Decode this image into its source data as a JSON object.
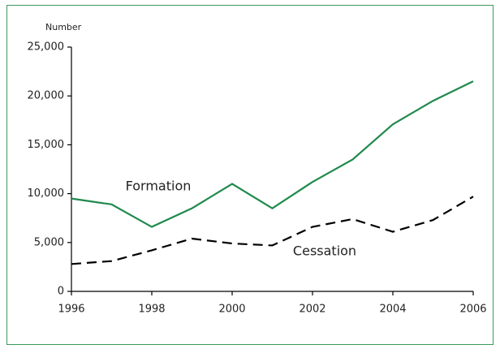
{
  "chart_data": {
    "type": "line",
    "y_label": "Number",
    "x": [
      1996,
      1997,
      1998,
      1999,
      2000,
      2001,
      2002,
      2003,
      2004,
      2005,
      2006
    ],
    "series": [
      {
        "name": "Formation",
        "color": "#1f8a4c",
        "dash": false,
        "values": [
          9500,
          8900,
          6600,
          8500,
          11000,
          8500,
          11200,
          13500,
          17100,
          19500,
          21500
        ]
      },
      {
        "name": "Cessation",
        "color": "#000000",
        "dash": true,
        "values": [
          2800,
          3100,
          4200,
          5400,
          4900,
          4700,
          6600,
          7400,
          6100,
          7300,
          9700
        ]
      }
    ],
    "xlim": [
      1996,
      2006
    ],
    "xticks": [
      1996,
      1998,
      2000,
      2002,
      2004,
      2006
    ],
    "ylim": [
      0,
      25000
    ],
    "yticks": [
      0,
      {
        "value": 5000,
        "label": "5,000"
      },
      {
        "value": 10000,
        "label": "10,000"
      },
      {
        "value": 15000,
        "label": "15,000"
      },
      {
        "value": 20000,
        "label": "20,000"
      },
      {
        "value": 25000,
        "label": "25,000"
      }
    ],
    "grid": false
  }
}
